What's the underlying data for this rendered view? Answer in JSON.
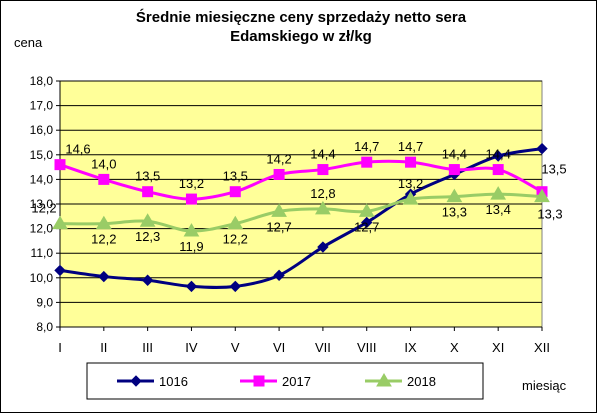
{
  "chart_data": {
    "type": "line",
    "title_line1": "Średnie miesięczne ceny sprzedaży netto sera",
    "title_line2": "Edamskiego w zł/kg",
    "ylabel": "cena",
    "xlabel": "miesiąc",
    "ylim": [
      8.0,
      18.0
    ],
    "ystep": 1.0,
    "yticks": [
      "8,0",
      "9,0",
      "10,0",
      "11,0",
      "12,0",
      "13,0",
      "14,0",
      "15,0",
      "16,0",
      "17,0",
      "18,0"
    ],
    "categories": [
      "I",
      "II",
      "III",
      "IV",
      "V",
      "VI",
      "VII",
      "VIII",
      "IX",
      "X",
      "XI",
      "XII"
    ],
    "grid": true,
    "legend_position": "bottom",
    "plot_background": "#ffff99",
    "series": [
      {
        "name": "1016",
        "color": "#000080",
        "marker": "diamond",
        "values": [
          10.3,
          10.05,
          9.9,
          9.65,
          9.65,
          10.1,
          11.25,
          12.25,
          13.4,
          14.2,
          14.95,
          15.25
        ],
        "labels": []
      },
      {
        "name": "2017",
        "color": "#ff00ff",
        "marker": "square",
        "values": [
          14.6,
          14.0,
          13.5,
          13.2,
          13.5,
          14.2,
          14.4,
          14.7,
          14.7,
          14.4,
          14.4,
          13.5
        ],
        "labels": [
          "14,6",
          "14,0",
          "13,5",
          "13,2",
          "13,5",
          "14,2",
          "14,4",
          "14,7",
          "14,7",
          "14,4",
          "14,4",
          "13,5"
        ]
      },
      {
        "name": "2018",
        "color": "#99cc66",
        "marker": "triangle",
        "values": [
          12.2,
          12.2,
          12.3,
          11.9,
          12.2,
          12.7,
          12.8,
          12.7,
          13.2,
          13.3,
          13.4,
          13.3
        ],
        "labels": [
          "12,2",
          "12,2",
          "12,3",
          "11,9",
          "12,2",
          "12,7",
          "12,8",
          "12,7",
          "13,2",
          "13,3",
          "13,4",
          "13,3"
        ]
      }
    ]
  }
}
